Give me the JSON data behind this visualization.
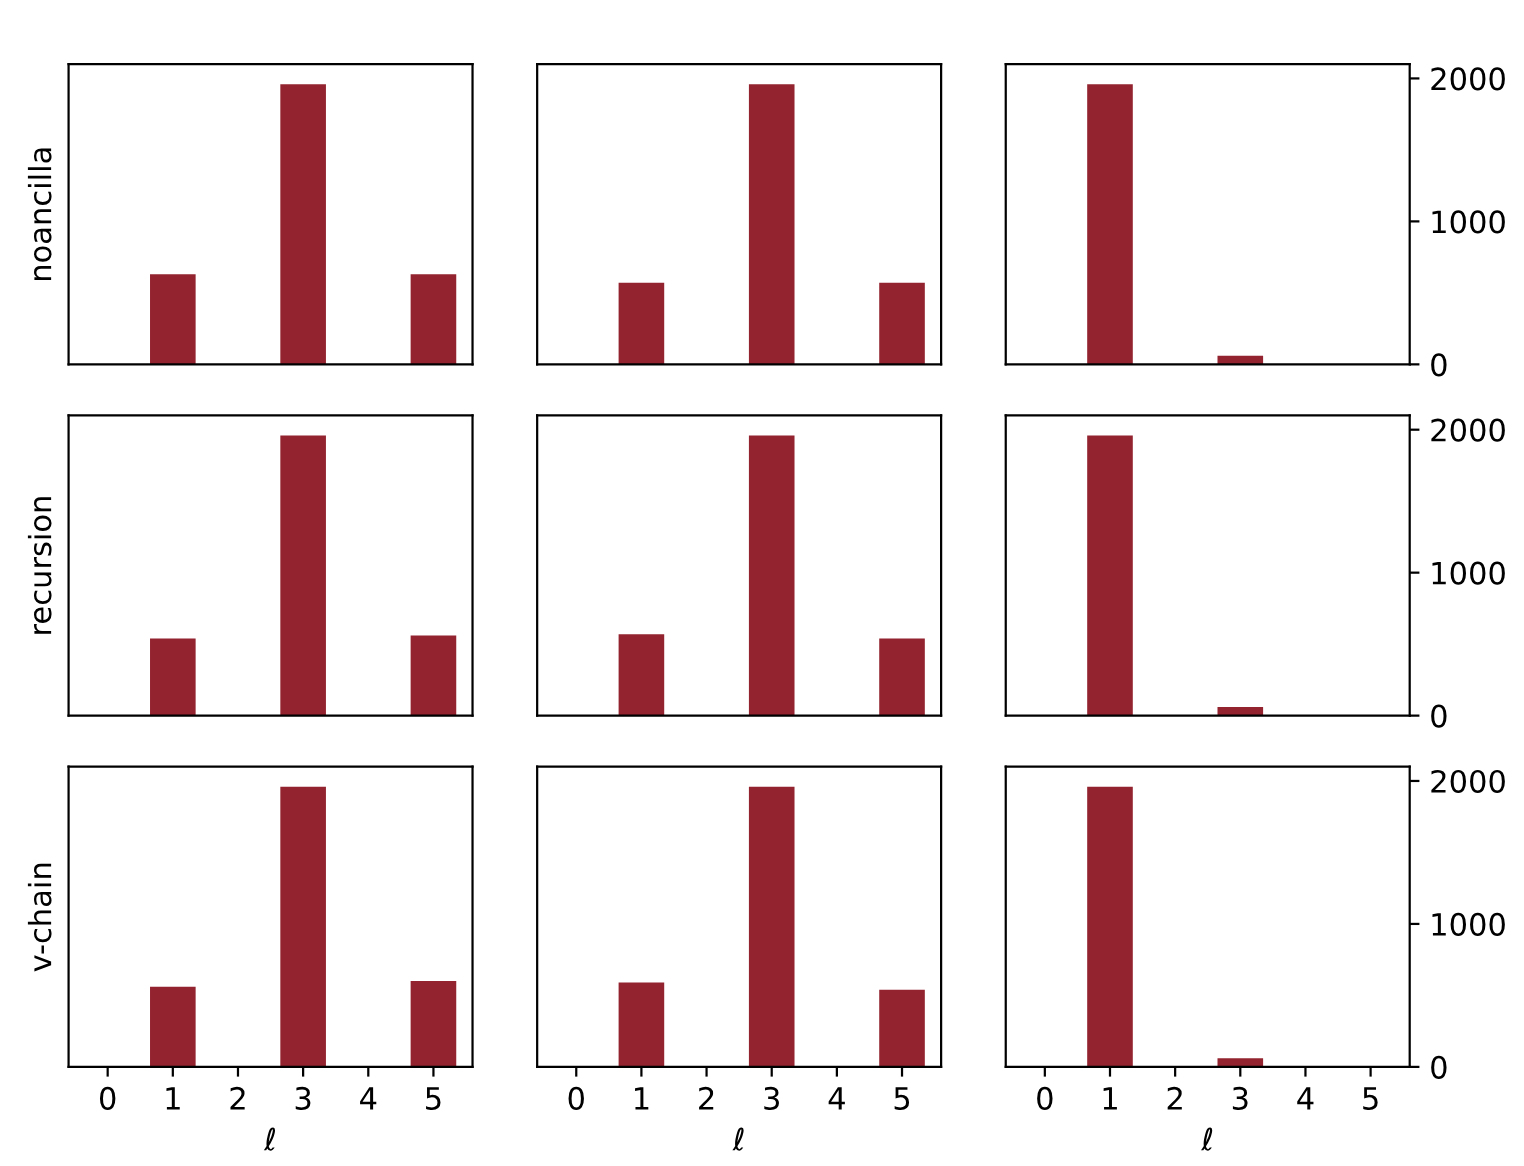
{
  "chart_data": [
    {
      "type": "bar",
      "ylabel": "noancilla",
      "x": [
        1,
        3,
        5
      ],
      "series": [
        {
          "color": "#92232f",
          "values": [
            630,
            1960,
            630
          ]
        }
      ],
      "xlim": [
        -0.6,
        5.6
      ],
      "ylim": [
        0,
        2100
      ],
      "tick_labels": false
    },
    {
      "type": "bar",
      "x": [
        1,
        3,
        5
      ],
      "series": [
        {
          "color": "#92232f",
          "values": [
            570,
            1960,
            570
          ]
        }
      ],
      "xlim": [
        -0.6,
        5.6
      ],
      "ylim": [
        0,
        2100
      ],
      "tick_labels": false
    },
    {
      "type": "bar",
      "x": [
        1,
        3
      ],
      "series": [
        {
          "color": "#92232f",
          "values": [
            1960,
            60
          ]
        }
      ],
      "xlim": [
        -0.6,
        5.6
      ],
      "ylim": [
        0,
        2100
      ],
      "yticks": [
        0,
        1000,
        2000
      ],
      "tick_labels": "y"
    },
    {
      "type": "bar",
      "ylabel": "recursion",
      "x": [
        1,
        3,
        5
      ],
      "series": [
        {
          "color": "#92232f",
          "values": [
            540,
            1960,
            560
          ]
        }
      ],
      "xlim": [
        -0.6,
        5.6
      ],
      "ylim": [
        0,
        2100
      ],
      "tick_labels": false
    },
    {
      "type": "bar",
      "x": [
        1,
        3,
        5
      ],
      "series": [
        {
          "color": "#92232f",
          "values": [
            570,
            1960,
            540
          ]
        }
      ],
      "xlim": [
        -0.6,
        5.6
      ],
      "ylim": [
        0,
        2100
      ],
      "tick_labels": false
    },
    {
      "type": "bar",
      "x": [
        1,
        3
      ],
      "series": [
        {
          "color": "#92232f",
          "values": [
            1960,
            60
          ]
        }
      ],
      "xlim": [
        -0.6,
        5.6
      ],
      "ylim": [
        0,
        2100
      ],
      "yticks": [
        0,
        1000,
        2000
      ],
      "tick_labels": "y"
    },
    {
      "type": "bar",
      "ylabel": "v-chain",
      "xlabel": "ℓ",
      "x": [
        1,
        3,
        5
      ],
      "series": [
        {
          "color": "#92232f",
          "values": [
            560,
            1960,
            600
          ]
        }
      ],
      "xlim": [
        -0.6,
        5.6
      ],
      "xticks": [
        0,
        1,
        2,
        3,
        4,
        5
      ],
      "ylim": [
        0,
        2100
      ],
      "tick_labels": "x"
    },
    {
      "type": "bar",
      "xlabel": "ℓ",
      "x": [
        1,
        3,
        5
      ],
      "series": [
        {
          "color": "#92232f",
          "values": [
            590,
            1960,
            540
          ]
        }
      ],
      "xlim": [
        -0.6,
        5.6
      ],
      "xticks": [
        0,
        1,
        2,
        3,
        4,
        5
      ],
      "ylim": [
        0,
        2100
      ],
      "tick_labels": "x"
    },
    {
      "type": "bar",
      "xlabel": "ℓ",
      "x": [
        1,
        3
      ],
      "series": [
        {
          "color": "#92232f",
          "values": [
            1960,
            60
          ]
        }
      ],
      "xlim": [
        -0.6,
        5.6
      ],
      "xticks": [
        0,
        1,
        2,
        3,
        4,
        5
      ],
      "ylim": [
        0,
        2100
      ],
      "yticks": [
        0,
        1000,
        2000
      ]
    }
  ]
}
